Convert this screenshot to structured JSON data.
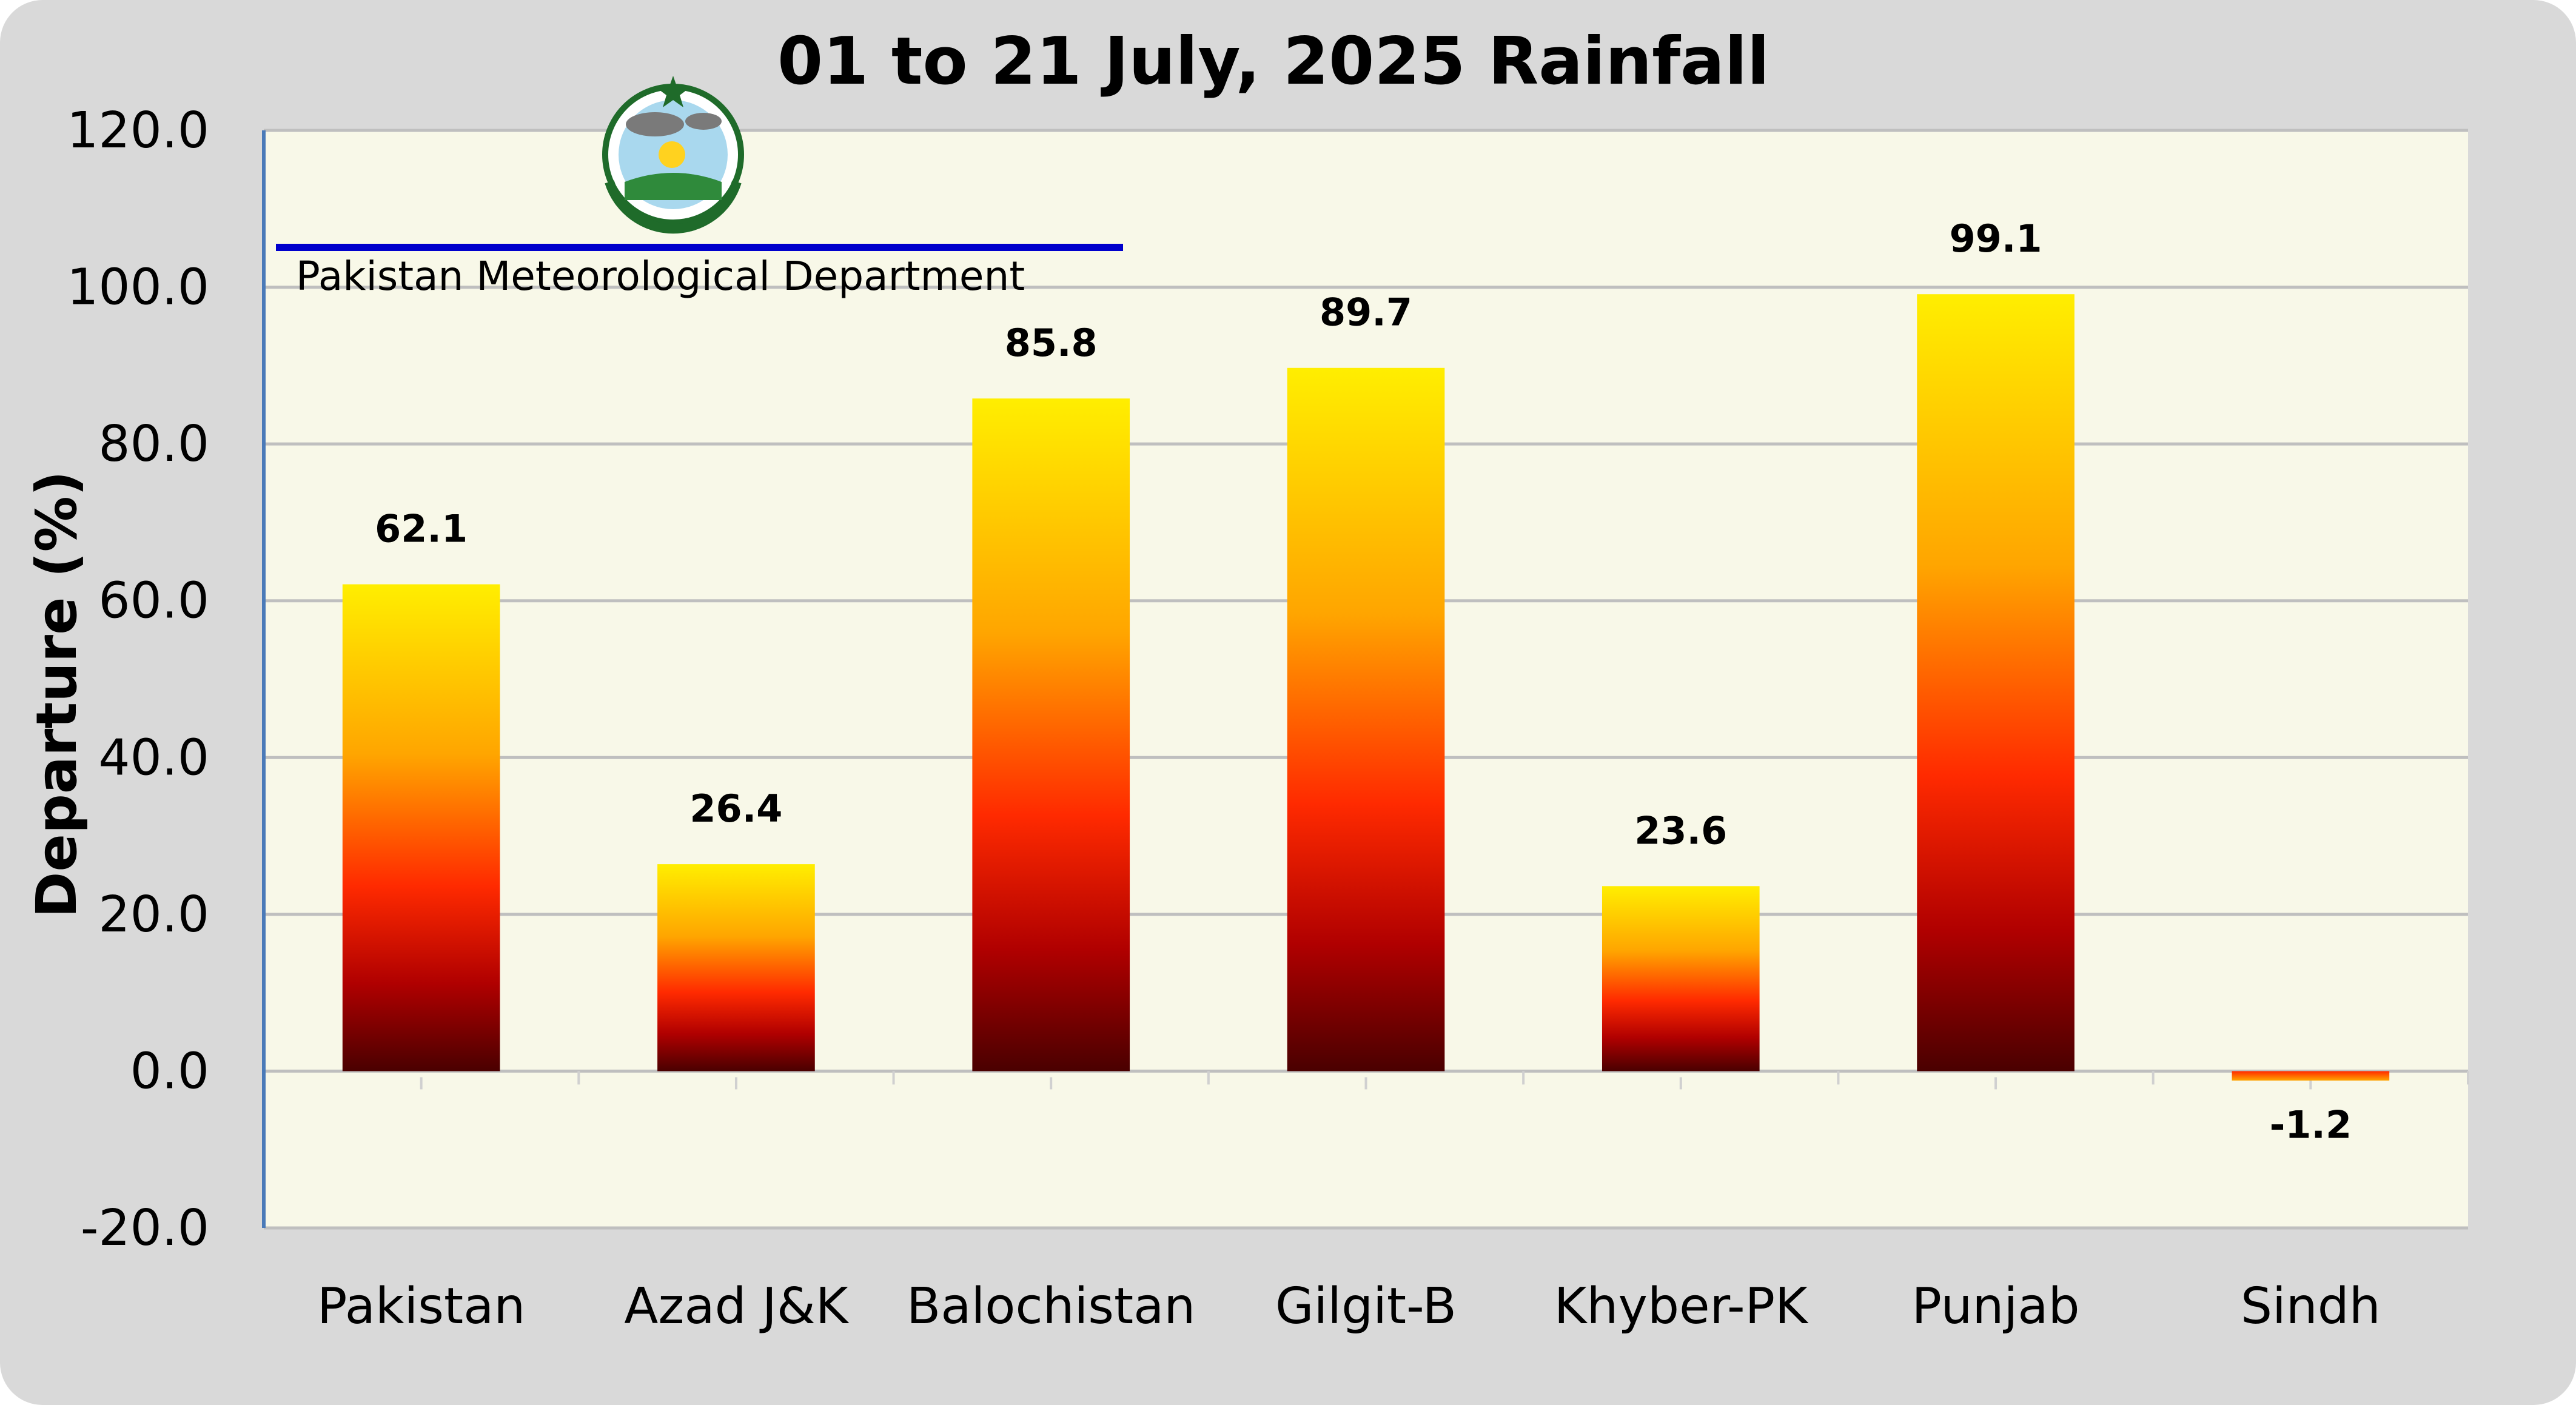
{
  "chart_data": {
    "type": "bar",
    "title": "01 to 21 July, 2025 Rainfall",
    "xlabel": "",
    "ylabel": "Departure (%)",
    "categories": [
      "Pakistan",
      "Azad J&K",
      "Balochistan",
      "Gilgit-B",
      "Khyber-PK",
      "Punjab",
      "Sindh"
    ],
    "values": [
      62.1,
      26.4,
      85.8,
      89.7,
      23.6,
      99.1,
      -1.2
    ],
    "value_labels": [
      "62.1",
      "26.4",
      "85.8",
      "89.7",
      "23.6",
      "99.1",
      "-1.2"
    ],
    "ylim": [
      -20,
      120
    ],
    "yticks": [
      "-20.0",
      "0.0",
      "20.0",
      "40.0",
      "60.0",
      "80.0",
      "100.0",
      "120.0"
    ],
    "ytick_values": [
      -20,
      0,
      20,
      40,
      60,
      80,
      100,
      120
    ],
    "grid": true,
    "legend": "none",
    "colors": {
      "plot_background": "#f8f8e8",
      "frame_background": "#d9d9d9",
      "gridline": "#bfbfbf",
      "axis_line": "#4a7ab8",
      "bar_gradient": [
        "#ffee00",
        "#ffa500",
        "#ff2a00",
        "#c00000",
        "#4a0000"
      ],
      "watermark_rule": "#0000cc"
    }
  },
  "watermark": {
    "text": "Pakistan Meteorological Department",
    "logo": "pmd-logo-emblem"
  }
}
